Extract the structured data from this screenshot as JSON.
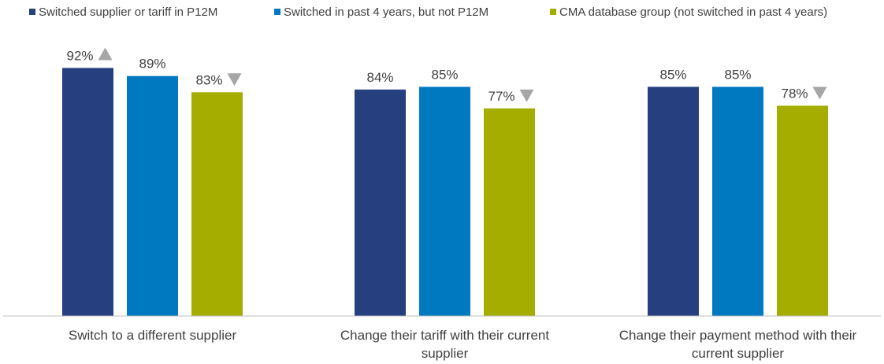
{
  "chart_data": {
    "type": "bar",
    "categories": [
      [
        "Switch to a different supplier"
      ],
      [
        "Change their tariff with their current",
        "supplier"
      ],
      [
        "Change their payment method with their",
        "current supplier"
      ]
    ],
    "series": [
      {
        "name": "Switched supplier or tariff in P12M",
        "color": "#253f7f",
        "values": [
          92,
          84,
          85
        ]
      },
      {
        "name": "Switched in past 4 years, but not P12M",
        "color": "#0079c1",
        "values": [
          89,
          85,
          85
        ]
      },
      {
        "name": "CMA database group (not switched in past 4 years)",
        "color": "#a4ad00",
        "values": [
          83,
          77,
          78
        ]
      }
    ],
    "data_labels": [
      [
        "92%",
        "89%",
        "83%"
      ],
      [
        "84%",
        "85%",
        "77%"
      ],
      [
        "85%",
        "85%",
        "78%"
      ]
    ],
    "significance_markers": [
      [
        "up",
        "none",
        "down"
      ],
      [
        "none",
        "none",
        "down"
      ],
      [
        "none",
        "none",
        "down"
      ]
    ],
    "marker_color": "#a6a6a6",
    "ylim": [
      0,
      100
    ],
    "grid": false,
    "legend_position": "top",
    "xlabel": "",
    "ylabel": "",
    "title": ""
  }
}
